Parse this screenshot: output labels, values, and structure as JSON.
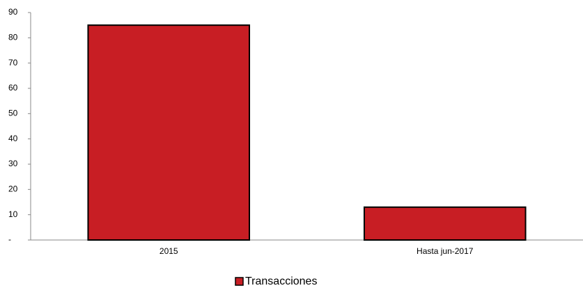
{
  "chart_data": {
    "type": "bar",
    "categories": [
      "2015",
      "Hasta jun-2017"
    ],
    "series": [
      {
        "name": "Transacciones",
        "color": "#c81e24",
        "values": [
          85,
          13
        ]
      }
    ],
    "ylim": [
      0,
      90
    ],
    "yticks": [
      {
        "value": 0,
        "label": "-"
      },
      10,
      20,
      30,
      40,
      50,
      60,
      70,
      80,
      90
    ],
    "grid": false,
    "legend": "bottom"
  }
}
